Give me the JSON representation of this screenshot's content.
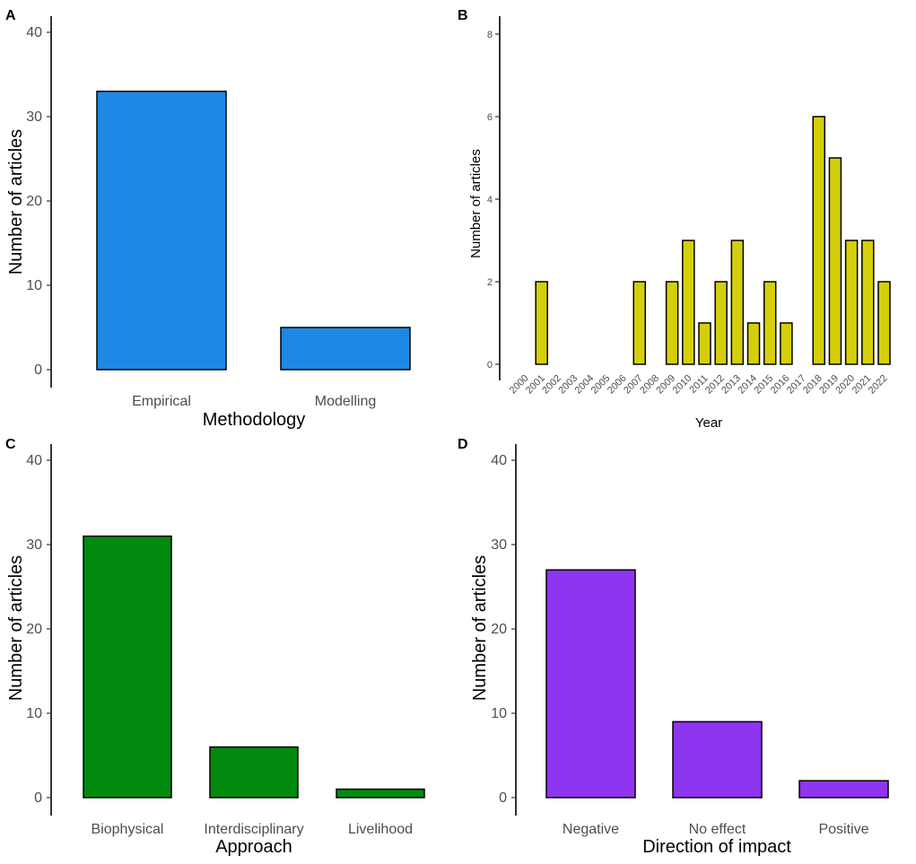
{
  "chart_data": [
    {
      "panel": "A",
      "type": "bar",
      "categories": [
        "Empirical",
        "Modelling"
      ],
      "values": [
        33,
        5
      ],
      "title": "",
      "xlabel": "Methodology",
      "ylabel": "Number of articles",
      "ylim": [
        0,
        40
      ],
      "yticks": [
        "0",
        "10",
        "20",
        "30",
        "40"
      ],
      "color": "#1e88e5"
    },
    {
      "panel": "B",
      "type": "bar",
      "categories": [
        "2000",
        "2001",
        "2002",
        "2003",
        "2004",
        "2005",
        "2006",
        "2007",
        "2008",
        "2009",
        "2010",
        "2011",
        "2012",
        "2013",
        "2014",
        "2015",
        "2016",
        "2017",
        "2018",
        "2019",
        "2020",
        "2021",
        "2022"
      ],
      "values": [
        0,
        2,
        0,
        0,
        0,
        0,
        0,
        2,
        0,
        2,
        3,
        1,
        2,
        3,
        1,
        2,
        1,
        0,
        6,
        5,
        3,
        3,
        2
      ],
      "title": "",
      "xlabel": "Year",
      "ylabel": "Number of articles",
      "ylim": [
        0,
        8
      ],
      "yticks": [
        "0",
        "2",
        "4",
        "6",
        "8"
      ],
      "color": "#d4cf0a"
    },
    {
      "panel": "C",
      "type": "bar",
      "categories": [
        "Biophysical",
        "Interdisciplinary",
        "Livelihood"
      ],
      "values": [
        31,
        6,
        1
      ],
      "title": "",
      "xlabel": "Approach",
      "ylabel": "Number of articles",
      "ylim": [
        0,
        40
      ],
      "yticks": [
        "0",
        "10",
        "20",
        "30",
        "40"
      ],
      "color": "#028a0f"
    },
    {
      "panel": "D",
      "type": "bar",
      "categories": [
        "Negative",
        "No effect",
        "Positive"
      ],
      "values": [
        27,
        9,
        2
      ],
      "title": "",
      "xlabel": "Direction of impact",
      "ylabel": "Number of articles",
      "ylim": [
        0,
        40
      ],
      "yticks": [
        "0",
        "10",
        "20",
        "30",
        "40"
      ],
      "color": "#8e35ef"
    }
  ]
}
